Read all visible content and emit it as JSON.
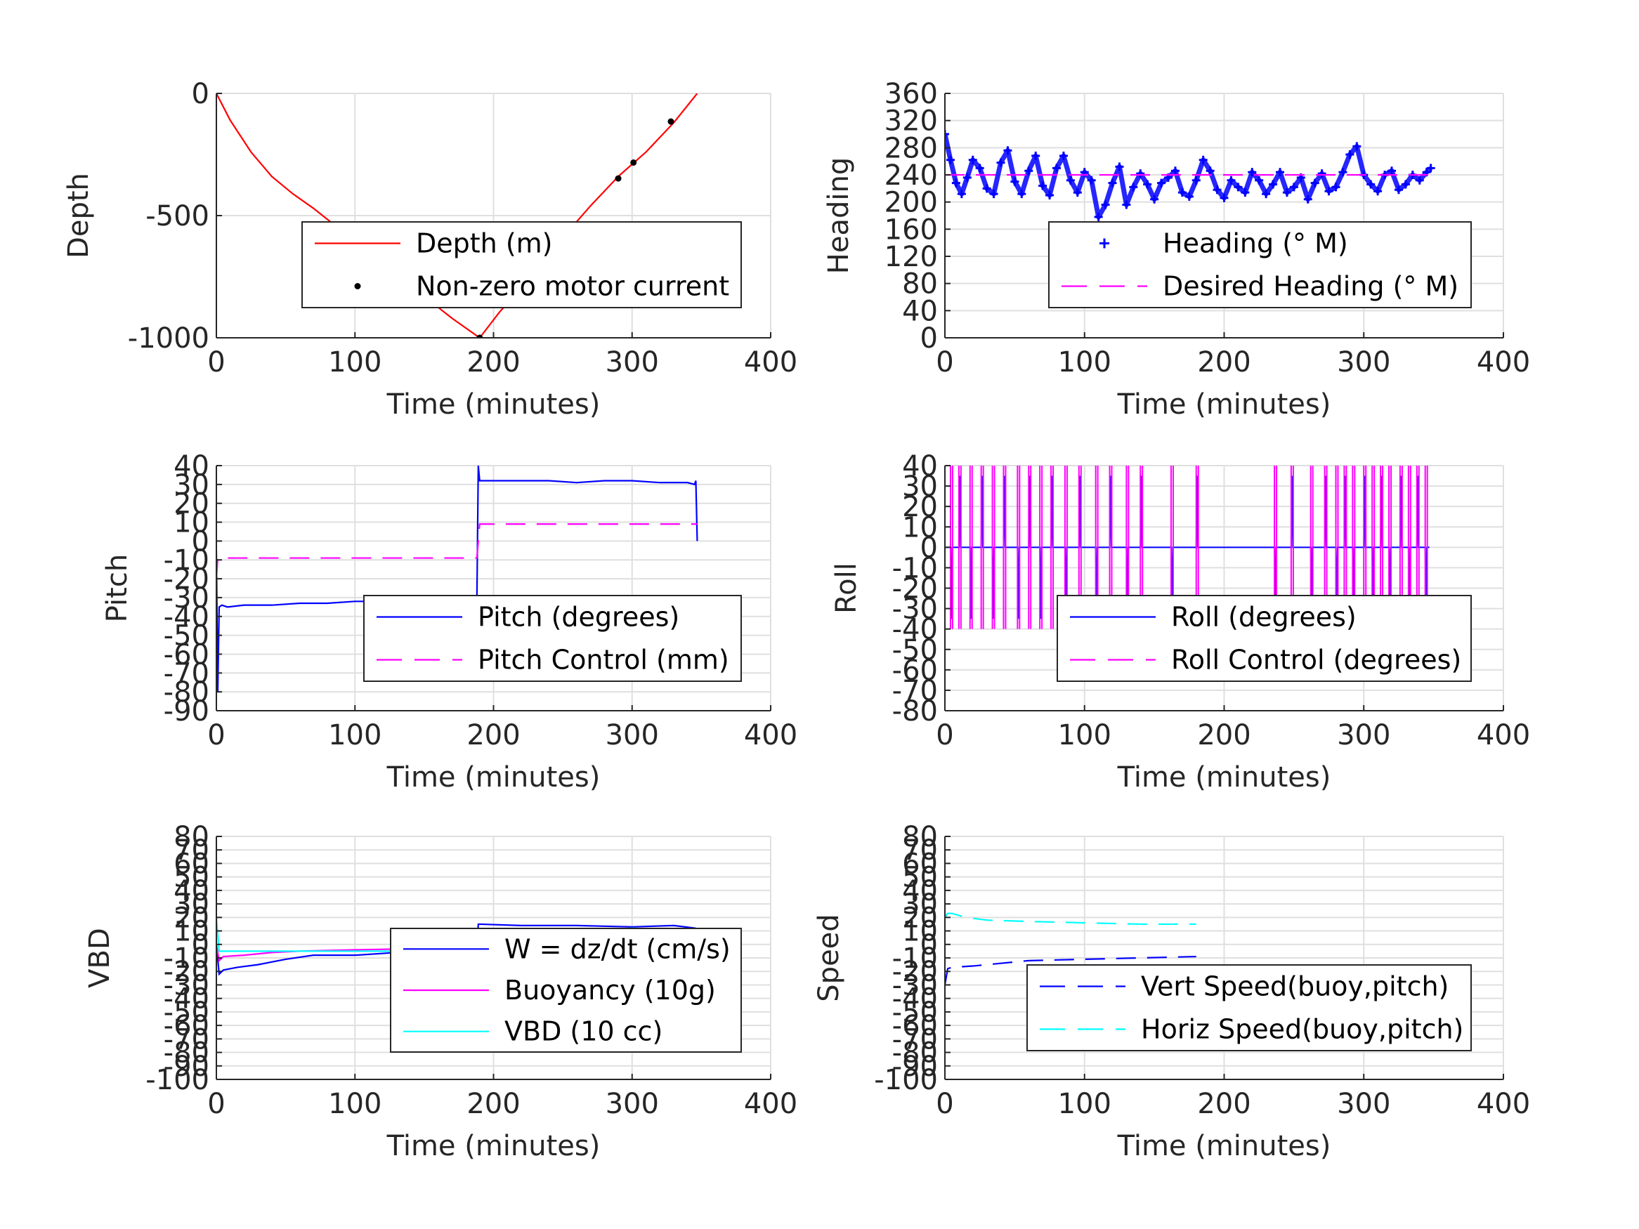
{
  "colors": {
    "red": "#ff0000",
    "blue": "#0000ff",
    "magenta": "#ff00ff",
    "cyan": "#00ffff",
    "black": "#000000"
  },
  "chart_data": [
    {
      "id": "depth",
      "type": "line",
      "xlabel": "Time (minutes)",
      "ylabel": "Depth",
      "xlim": [
        0,
        400
      ],
      "ylim": [
        -1000,
        0
      ],
      "xticks": [
        0,
        100,
        200,
        300,
        400
      ],
      "yticks": [
        -1000,
        -500,
        0
      ],
      "legend_position": "center",
      "grid": true,
      "series": [
        {
          "name": "Depth (m)",
          "color": "#ff0000",
          "style": "solid",
          "x": [
            0,
            10,
            25,
            40,
            55,
            70,
            90,
            110,
            130,
            150,
            170,
            190,
            205,
            220,
            235,
            250,
            270,
            290,
            310,
            330,
            347
          ],
          "y": [
            0,
            -110,
            -240,
            -340,
            -410,
            -470,
            -560,
            -650,
            -740,
            -830,
            -920,
            -1000,
            -890,
            -800,
            -700,
            -590,
            -460,
            -340,
            -240,
            -120,
            0
          ]
        },
        {
          "name": "Non-zero motor current",
          "color": "#000000",
          "style": "dots",
          "x": [
            190,
            290,
            301,
            328
          ],
          "y": [
            -1000,
            -348,
            -283,
            -115
          ]
        }
      ]
    },
    {
      "id": "heading",
      "type": "scatter",
      "xlabel": "Time (minutes)",
      "ylabel": "Heading",
      "xlim": [
        0,
        400
      ],
      "ylim": [
        0,
        360
      ],
      "xticks": [
        0,
        100,
        200,
        300,
        400
      ],
      "yticks": [
        0,
        40,
        80,
        120,
        160,
        200,
        240,
        280,
        320,
        360
      ],
      "legend_position": "lower-right",
      "grid": true,
      "series": [
        {
          "name": "Heading (° M)",
          "color": "#0000ff",
          "style": "plus",
          "x": [
            0,
            4,
            8,
            12,
            16,
            20,
            25,
            30,
            35,
            40,
            45,
            50,
            55,
            60,
            65,
            70,
            75,
            80,
            85,
            90,
            95,
            100,
            105,
            110,
            115,
            120,
            125,
            130,
            135,
            140,
            145,
            150,
            155,
            160,
            165,
            170,
            175,
            180,
            185,
            190,
            195,
            200,
            205,
            210,
            215,
            220,
            225,
            230,
            235,
            240,
            245,
            250,
            255,
            260,
            265,
            270,
            275,
            280,
            285,
            290,
            295,
            300,
            305,
            310,
            315,
            320,
            325,
            330,
            335,
            340,
            345,
            348
          ],
          "y": [
            300,
            262,
            228,
            212,
            236,
            262,
            250,
            220,
            212,
            258,
            276,
            230,
            212,
            246,
            268,
            224,
            210,
            250,
            268,
            232,
            214,
            244,
            232,
            178,
            196,
            228,
            252,
            196,
            222,
            242,
            226,
            204,
            228,
            236,
            246,
            214,
            208,
            232,
            262,
            246,
            218,
            206,
            232,
            222,
            214,
            244,
            232,
            212,
            226,
            244,
            214,
            222,
            236,
            204,
            228,
            242,
            216,
            222,
            244,
            270,
            282,
            240,
            226,
            216,
            240,
            246,
            218,
            226,
            240,
            232,
            244,
            250
          ]
        },
        {
          "name": "Desired Heading (° M)",
          "color": "#ff00ff",
          "style": "dashed",
          "x": [
            0,
            348
          ],
          "y": [
            240,
            240
          ]
        }
      ]
    },
    {
      "id": "pitch",
      "type": "line",
      "xlabel": "Time (minutes)",
      "ylabel": "Pitch",
      "xlim": [
        0,
        400
      ],
      "ylim": [
        -90,
        40
      ],
      "xticks": [
        0,
        100,
        200,
        300,
        400
      ],
      "yticks": [
        -90,
        -80,
        -70,
        -60,
        -50,
        -40,
        -30,
        -20,
        -10,
        0,
        10,
        20,
        30,
        40
      ],
      "legend_position": "lower-right",
      "grid": true,
      "series": [
        {
          "name": "Pitch (degrees)",
          "color": "#0000ff",
          "style": "solid",
          "x": [
            0,
            1,
            2,
            4,
            8,
            20,
            40,
            60,
            80,
            100,
            120,
            140,
            160,
            180,
            188,
            189,
            190,
            200,
            220,
            240,
            260,
            280,
            300,
            320,
            340,
            345,
            346,
            347
          ],
          "y": [
            -5,
            -80,
            -35,
            -34,
            -35,
            -34,
            -34,
            -33,
            -33,
            -32,
            -32,
            -32,
            -32,
            -31,
            -31,
            40,
            32,
            32,
            32,
            32,
            31,
            32,
            32,
            31,
            31,
            30,
            32,
            0
          ]
        },
        {
          "name": "Pitch Control (mm)",
          "color": "#ff00ff",
          "style": "dashed",
          "x": [
            0,
            1,
            2,
            188,
            189,
            190,
            346,
            347
          ],
          "y": [
            -20,
            -9,
            -9,
            -9,
            0,
            9,
            9,
            9
          ]
        }
      ]
    },
    {
      "id": "roll",
      "type": "line",
      "xlabel": "Time (minutes)",
      "ylabel": "Roll",
      "xlim": [
        0,
        400
      ],
      "ylim": [
        -80,
        40
      ],
      "xticks": [
        0,
        100,
        200,
        300,
        400
      ],
      "yticks": [
        -80,
        -70,
        -60,
        -50,
        -40,
        -30,
        -20,
        -10,
        0,
        10,
        20,
        30,
        40
      ],
      "legend_position": "lower-right",
      "grid": true,
      "series": [
        {
          "name": "Roll (degrees)",
          "color": "#0000ff",
          "style": "solid",
          "spike_times": [
            4,
            10,
            18,
            26,
            34,
            42,
            52,
            60,
            68,
            76,
            86,
            96,
            108,
            118,
            130,
            140,
            162,
            180,
            236,
            248,
            262,
            272,
            280,
            286,
            292,
            300,
            306,
            312,
            318,
            326,
            332,
            338,
            344
          ],
          "baseline": 0
        },
        {
          "name": "Roll Control (degrees)",
          "color": "#ff00ff",
          "style": "dashed",
          "spike_times": [
            4,
            10,
            18,
            26,
            34,
            42,
            52,
            60,
            68,
            76,
            86,
            96,
            108,
            118,
            130,
            140,
            162,
            180,
            236,
            248,
            262,
            272,
            280,
            286,
            292,
            300,
            306,
            312,
            318,
            326,
            332,
            338,
            344
          ],
          "range": [
            -40,
            40
          ]
        }
      ]
    },
    {
      "id": "vbd",
      "type": "line",
      "xlabel": "Time (minutes)",
      "ylabel": "VBD",
      "xlim": [
        0,
        400
      ],
      "ylim": [
        -100,
        80
      ],
      "xticks": [
        0,
        100,
        200,
        300,
        400
      ],
      "yticks": [
        -100,
        -90,
        -80,
        -70,
        -60,
        -50,
        -40,
        -30,
        -20,
        -10,
        0,
        10,
        20,
        30,
        40,
        50,
        60,
        70,
        80
      ],
      "legend_position": "lower-right",
      "grid": true,
      "series": [
        {
          "name": "W = dz/dt (cm/s)",
          "color": "#0000ff",
          "style": "solid",
          "x": [
            0,
            2,
            5,
            15,
            30,
            50,
            70,
            100,
            130,
            160,
            188,
            189,
            190,
            220,
            260,
            300,
            330,
            346
          ],
          "y": [
            0,
            -22,
            -19,
            -17,
            -15,
            -11,
            -8,
            -8,
            -6,
            -4,
            -3,
            15,
            15,
            14,
            14,
            13,
            14,
            12
          ]
        },
        {
          "name": "Buoyancy (10g)",
          "color": "#ff00ff",
          "style": "solid",
          "x": [
            0,
            2,
            5,
            20,
            40,
            60,
            100,
            150,
            188,
            189,
            190,
            250,
            300,
            346
          ],
          "y": [
            0,
            -12,
            -9,
            -8,
            -6,
            -5,
            -4,
            -3,
            -3,
            8,
            8,
            10,
            11,
            10
          ]
        },
        {
          "name": "VBD (10 cc)",
          "color": "#00ffff",
          "style": "solid",
          "x": [
            0,
            2,
            5,
            188,
            189,
            190,
            260,
            280,
            300,
            346
          ],
          "y": [
            20,
            -5,
            -5,
            -5,
            8,
            8,
            8,
            10,
            12,
            10
          ]
        }
      ]
    },
    {
      "id": "speed",
      "type": "line",
      "xlabel": "Time (minutes)",
      "ylabel": "Speed",
      "xlim": [
        0,
        400
      ],
      "ylim": [
        -100,
        80
      ],
      "xticks": [
        0,
        100,
        200,
        300,
        400
      ],
      "yticks": [
        -100,
        -90,
        -80,
        -70,
        -60,
        -50,
        -40,
        -30,
        -20,
        -10,
        0,
        10,
        20,
        30,
        40,
        50,
        60,
        70,
        80
      ],
      "legend_position": "lower-right",
      "grid": true,
      "series": [
        {
          "name": "Vert Speed(buoy,pitch)",
          "color": "#0000ff",
          "style": "dashed",
          "x": [
            0,
            2,
            5,
            20,
            40,
            60,
            100,
            140,
            180
          ],
          "y": [
            -30,
            -18,
            -17,
            -16,
            -14,
            -12,
            -11,
            -10,
            -9
          ]
        },
        {
          "name": "Horiz Speed(buoy,pitch)",
          "color": "#00ffff",
          "style": "dashed",
          "x": [
            0,
            2,
            5,
            15,
            30,
            60,
            100,
            140,
            180
          ],
          "y": [
            20,
            23,
            23,
            20,
            18,
            17,
            16,
            15,
            15
          ]
        }
      ]
    }
  ]
}
